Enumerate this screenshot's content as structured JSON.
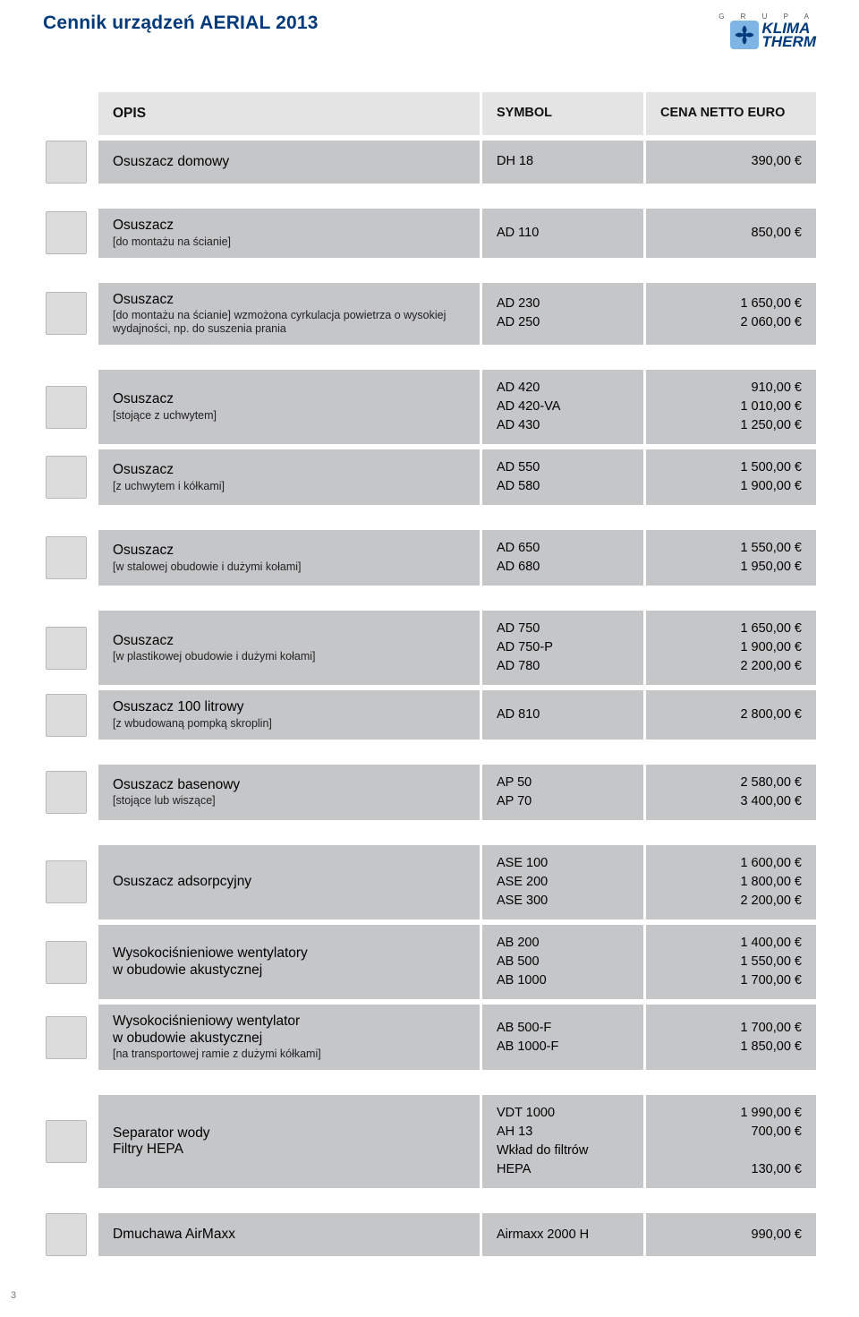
{
  "colors": {
    "title_color": "#003a7a",
    "header_bg": "#e4e4e4",
    "row_bg": "#c5c6c8",
    "page_bg": "#ffffff"
  },
  "title": "Cennik urządzeń AERIAL 2013",
  "logo": {
    "grupa": "G R U P A",
    "brand_top": "KLIMA",
    "brand_bot": "THERM"
  },
  "header": {
    "opis": "OPIS",
    "symbol": "SYMBOL",
    "cena": "CENA NETTO EURO"
  },
  "groups": [
    {
      "rows": [
        {
          "thumb": true,
          "desc_main": "Osuszacz domowy",
          "desc_sub": "",
          "symbols": [
            "DH 18"
          ],
          "prices": [
            "390,00 €"
          ]
        }
      ]
    },
    {
      "rows": [
        {
          "thumb": true,
          "desc_main": "Osuszacz",
          "desc_sub": "[do montażu na ścianie]",
          "symbols": [
            "AD 110"
          ],
          "prices": [
            "850,00 €"
          ]
        }
      ]
    },
    {
      "rows": [
        {
          "thumb": true,
          "desc_main": "Osuszacz",
          "desc_sub": "[do montażu na ścianie] wzmożona cyrkulacja powietrza o wysokiej wydajności, np. do suszenia prania",
          "symbols": [
            "AD 230",
            "AD 250"
          ],
          "prices": [
            "1 650,00 €",
            "2 060,00 €"
          ]
        }
      ]
    },
    {
      "rows": [
        {
          "thumb": true,
          "desc_main": "Osuszacz",
          "desc_sub": "[stojące z uchwytem]",
          "symbols": [
            "AD 420",
            "AD 420-VA",
            "AD 430"
          ],
          "prices": [
            "910,00 €",
            "1 010,00 €",
            "1 250,00 €"
          ]
        },
        {
          "thumb": true,
          "desc_main": "Osuszacz",
          "desc_sub": "[z uchwytem i kółkami]",
          "symbols": [
            "AD 550",
            "AD 580"
          ],
          "prices": [
            "1 500,00 €",
            "1 900,00 €"
          ]
        }
      ]
    },
    {
      "rows": [
        {
          "thumb": true,
          "desc_main": "Osuszacz",
          "desc_sub": "[w stalowej obudowie i dużymi kołami]",
          "symbols": [
            "AD 650",
            "AD 680"
          ],
          "prices": [
            "1 550,00 €",
            "1 950,00 €"
          ]
        }
      ]
    },
    {
      "rows": [
        {
          "thumb": true,
          "desc_main": "Osuszacz",
          "desc_sub": "[w plastikowej obudowie i dużymi kołami]",
          "symbols": [
            "AD 750",
            "AD 750-P",
            "AD 780"
          ],
          "prices": [
            "1 650,00 €",
            "1 900,00 €",
            "2 200,00 €"
          ]
        },
        {
          "thumb": true,
          "desc_main": "Osuszacz 100 litrowy",
          "desc_sub": "[z wbudowaną pompką skroplin]",
          "symbols": [
            "AD 810"
          ],
          "prices": [
            "2 800,00 €"
          ]
        }
      ]
    },
    {
      "rows": [
        {
          "thumb": true,
          "desc_main": "Osuszacz basenowy",
          "desc_sub": "[stojące lub wiszące]",
          "symbols": [
            "AP 50",
            "AP 70"
          ],
          "prices": [
            "2 580,00 €",
            "3 400,00 €"
          ]
        }
      ]
    },
    {
      "rows": [
        {
          "thumb": true,
          "desc_main": "Osuszacz adsorpcyjny",
          "desc_sub": "",
          "symbols": [
            "ASE 100",
            "ASE 200",
            "ASE 300"
          ],
          "prices": [
            "1 600,00 €",
            "1 800,00 €",
            "2 200,00 €"
          ]
        },
        {
          "thumb": true,
          "desc_main": "Wysokociśnieniowe wentylatory\nw obudowie akustycznej",
          "desc_sub": "",
          "symbols": [
            "AB 200",
            "AB 500",
            "AB 1000"
          ],
          "prices": [
            "1 400,00 €",
            "1 550,00 €",
            "1 700,00 €"
          ]
        },
        {
          "thumb": true,
          "desc_main": "Wysokociśnieniowy wentylator\nw obudowie akustycznej",
          "desc_sub": "[na transportowej ramie z dużymi kółkami]",
          "symbols": [
            "AB 500-F",
            "AB 1000-F"
          ],
          "prices": [
            "1 700,00 €",
            "1 850,00 €"
          ]
        }
      ]
    },
    {
      "rows": [
        {
          "thumb": true,
          "desc_main": "Separator wody\nFiltry HEPA",
          "desc_sub": "",
          "symbols": [
            "VDT 1000",
            "AH 13",
            "Wkład do filtrów",
            "HEPA"
          ],
          "prices": [
            "1 990,00 €",
            "700,00 €",
            "",
            "130,00 €"
          ]
        }
      ]
    },
    {
      "rows": [
        {
          "thumb": true,
          "desc_main": "Dmuchawa AirMaxx",
          "desc_sub": "",
          "symbols": [
            "Airmaxx 2000 H"
          ],
          "prices": [
            "990,00 €"
          ]
        }
      ]
    }
  ],
  "page_number": "3"
}
